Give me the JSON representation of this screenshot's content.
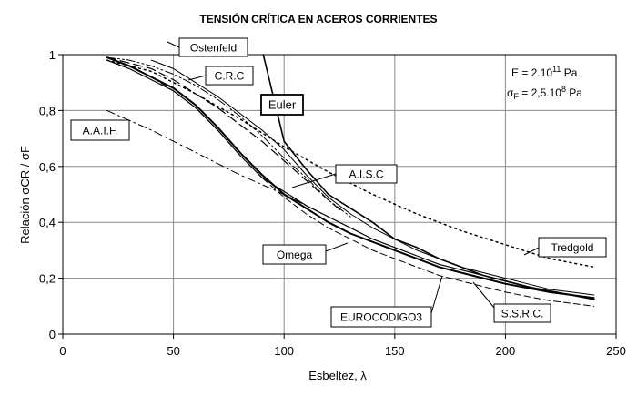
{
  "chart_data": {
    "type": "line",
    "title": "TENSIÓN CRÍTICA EN ACEROS CORRIENTES",
    "xlabel": "Esbeltez, λ",
    "ylabel": "Relación σCR / σF",
    "xlim": [
      0,
      250
    ],
    "ylim": [
      0,
      1
    ],
    "x_ticks": [
      "0",
      "50",
      "100",
      "150",
      "200",
      "250"
    ],
    "y_ticks": [
      "0",
      "0,2",
      "0,4",
      "0,6",
      "0,8",
      "1"
    ],
    "grid": true,
    "legend": "inline-labels",
    "info_box": {
      "E_prefix": "E = 2.10",
      "E_exp": "11",
      "E_unit": " Pa",
      "S_symbol": "σ",
      "S_sub": "F",
      "S_prefix": " = 2,5.10",
      "S_exp": "8",
      "S_unit": " Pa"
    },
    "series": [
      {
        "name": "Euler",
        "style": "solid",
        "width": 1.6,
        "x": [
          90.6,
          100,
          110,
          120,
          130,
          140,
          150,
          160,
          170,
          180,
          190,
          200,
          210,
          220,
          230,
          240
        ],
        "y": [
          1.0,
          0.69,
          0.59,
          0.5,
          0.45,
          0.4,
          0.34,
          0.31,
          0.27,
          0.24,
          0.21,
          0.19,
          0.17,
          0.15,
          0.14,
          0.13
        ]
      },
      {
        "name": "Ostenfeld",
        "style": "solid",
        "width": 1.0,
        "x": [
          40,
          50,
          60,
          70,
          80,
          90,
          100,
          110,
          120,
          130,
          140,
          150,
          160,
          170,
          180,
          190,
          200,
          210,
          220,
          230,
          240
        ],
        "y": [
          0.98,
          0.95,
          0.9,
          0.85,
          0.79,
          0.73,
          0.66,
          0.57,
          0.49,
          0.43,
          0.38,
          0.34,
          0.3,
          0.27,
          0.24,
          0.22,
          0.2,
          0.18,
          0.16,
          0.15,
          0.14
        ]
      },
      {
        "name": "C.R.C",
        "style": "dashdotdot",
        "width": 1.0,
        "x": [
          20,
          30,
          40,
          50,
          60,
          70,
          80,
          90,
          100,
          110,
          120,
          130
        ],
        "y": [
          0.99,
          0.98,
          0.96,
          0.93,
          0.89,
          0.84,
          0.78,
          0.71,
          0.63,
          0.56,
          0.48,
          0.42
        ]
      },
      {
        "name": "A.A.I.F.",
        "style": "dashdot",
        "width": 1.0,
        "x": [
          20,
          40,
          60,
          80,
          100,
          120
        ],
        "y": [
          0.8,
          0.73,
          0.65,
          0.57,
          0.5,
          0.42
        ]
      },
      {
        "name": "A.I.S.C",
        "style": "longdash",
        "width": 1.2,
        "x": [
          20,
          30,
          40,
          50,
          60,
          70,
          80,
          90,
          100,
          110,
          120,
          126
        ],
        "y": [
          0.99,
          0.97,
          0.95,
          0.91,
          0.86,
          0.81,
          0.75,
          0.69,
          0.62,
          0.55,
          0.48,
          0.44
        ]
      },
      {
        "name": "Tredgold",
        "style": "dotted",
        "width": 1.5,
        "x": [
          20,
          40,
          60,
          80,
          100,
          120,
          140,
          160,
          180,
          200,
          220,
          240
        ],
        "y": [
          0.98,
          0.94,
          0.86,
          0.77,
          0.67,
          0.58,
          0.5,
          0.43,
          0.37,
          0.32,
          0.27,
          0.24
        ]
      },
      {
        "name": "Omega",
        "style": "solid",
        "width": 1.2,
        "x": [
          20,
          30,
          40,
          50,
          60,
          70,
          80,
          90,
          100,
          110,
          120,
          130,
          140,
          150,
          160,
          170,
          180,
          190,
          200,
          210,
          220,
          230,
          240
        ],
        "y": [
          0.98,
          0.95,
          0.91,
          0.87,
          0.81,
          0.73,
          0.64,
          0.56,
          0.51,
          0.46,
          0.42,
          0.38,
          0.34,
          0.31,
          0.28,
          0.25,
          0.23,
          0.21,
          0.19,
          0.17,
          0.155,
          0.14,
          0.13
        ]
      },
      {
        "name": "EUROCODIGO3",
        "style": "solid",
        "width": 2.0,
        "x": [
          20,
          30,
          40,
          50,
          60,
          70,
          80,
          90,
          100,
          110,
          120,
          130,
          140,
          150,
          160,
          170,
          180,
          190,
          200,
          210,
          220,
          230,
          240
        ],
        "y": [
          0.99,
          0.96,
          0.92,
          0.88,
          0.82,
          0.74,
          0.65,
          0.57,
          0.5,
          0.45,
          0.4,
          0.36,
          0.33,
          0.3,
          0.27,
          0.24,
          0.22,
          0.2,
          0.18,
          0.165,
          0.15,
          0.14,
          0.125
        ]
      },
      {
        "name": "S.S.R.C.",
        "style": "dashed",
        "width": 1.0,
        "x": [
          20,
          30,
          40,
          50,
          60,
          70,
          80,
          90,
          100,
          110,
          120,
          130,
          140,
          150,
          160,
          170,
          180,
          190,
          200,
          210,
          220,
          230,
          240
        ],
        "y": [
          0.99,
          0.96,
          0.92,
          0.87,
          0.81,
          0.73,
          0.64,
          0.56,
          0.49,
          0.43,
          0.38,
          0.34,
          0.3,
          0.27,
          0.24,
          0.21,
          0.19,
          0.17,
          0.15,
          0.135,
          0.12,
          0.11,
          0.1
        ]
      }
    ]
  }
}
